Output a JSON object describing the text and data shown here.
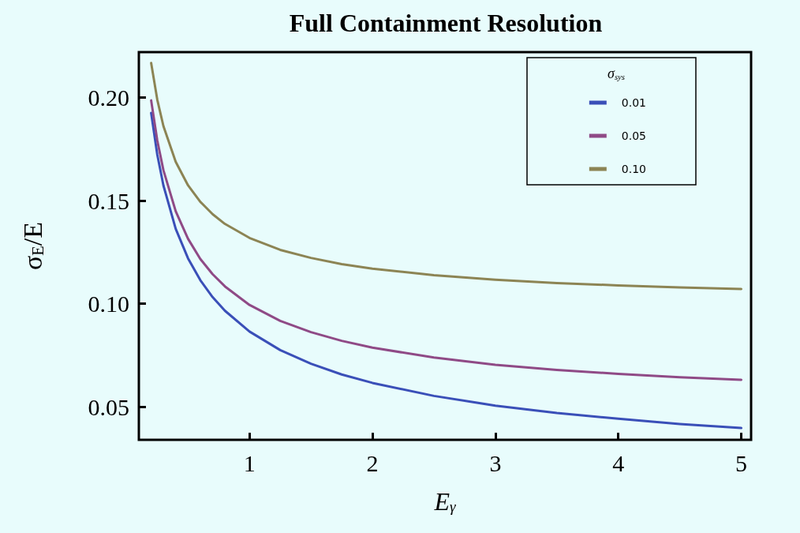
{
  "chart_data": {
    "type": "line",
    "title": "Full Containment Resolution",
    "xlabel": "E$_{γ}$",
    "ylabel": "σ$_{E}$/E",
    "legend_title": "σ$_{sys}$",
    "x": [
      0.2,
      0.25,
      0.3,
      0.4,
      0.5,
      0.6,
      0.7,
      0.8,
      1,
      1.25,
      1.5,
      1.75,
      2,
      2.5,
      3,
      3.5,
      4,
      4.5,
      5
    ],
    "series": [
      {
        "name": "0.01",
        "color": "#3a4fb8",
        "values": [
          0.1925,
          0.1722,
          0.1573,
          0.1363,
          0.122,
          0.1114,
          0.1032,
          0.0966,
          0.0865,
          0.0775,
          0.0709,
          0.0657,
          0.0616,
          0.0553,
          0.0506,
          0.047,
          0.0442,
          0.0417,
          0.0397
        ]
      },
      {
        "name": "0.05",
        "color": "#8f4a86",
        "values": [
          0.1986,
          0.1791,
          0.1647,
          0.1448,
          0.1315,
          0.1217,
          0.1143,
          0.1084,
          0.0994,
          0.0917,
          0.0862,
          0.082,
          0.0787,
          0.0739,
          0.0704,
          0.0679,
          0.066,
          0.0643,
          0.0631
        ]
      },
      {
        "name": "0.10",
        "color": "#8c8454",
        "values": [
          0.2167,
          0.1989,
          0.1861,
          0.1688,
          0.1574,
          0.1494,
          0.1434,
          0.1387,
          0.1319,
          0.1261,
          0.1222,
          0.1192,
          0.117,
          0.1138,
          0.1116,
          0.11,
          0.1089,
          0.1079,
          0.1071
        ]
      }
    ],
    "xlim": [
      0.1,
      5.08
    ],
    "xticks": [
      1,
      2,
      3,
      4,
      5
    ],
    "ylim": [
      0.034,
      0.222
    ],
    "yticks": [
      {
        "value": 0.05,
        "label": "0.05"
      },
      {
        "value": 0.1,
        "label": "0.10"
      },
      {
        "value": 0.15,
        "label": "0.15"
      },
      {
        "value": 0.2,
        "label": "0.20"
      }
    ],
    "grid": false,
    "legend": "top right",
    "marker": "none",
    "line_style": "solid"
  }
}
